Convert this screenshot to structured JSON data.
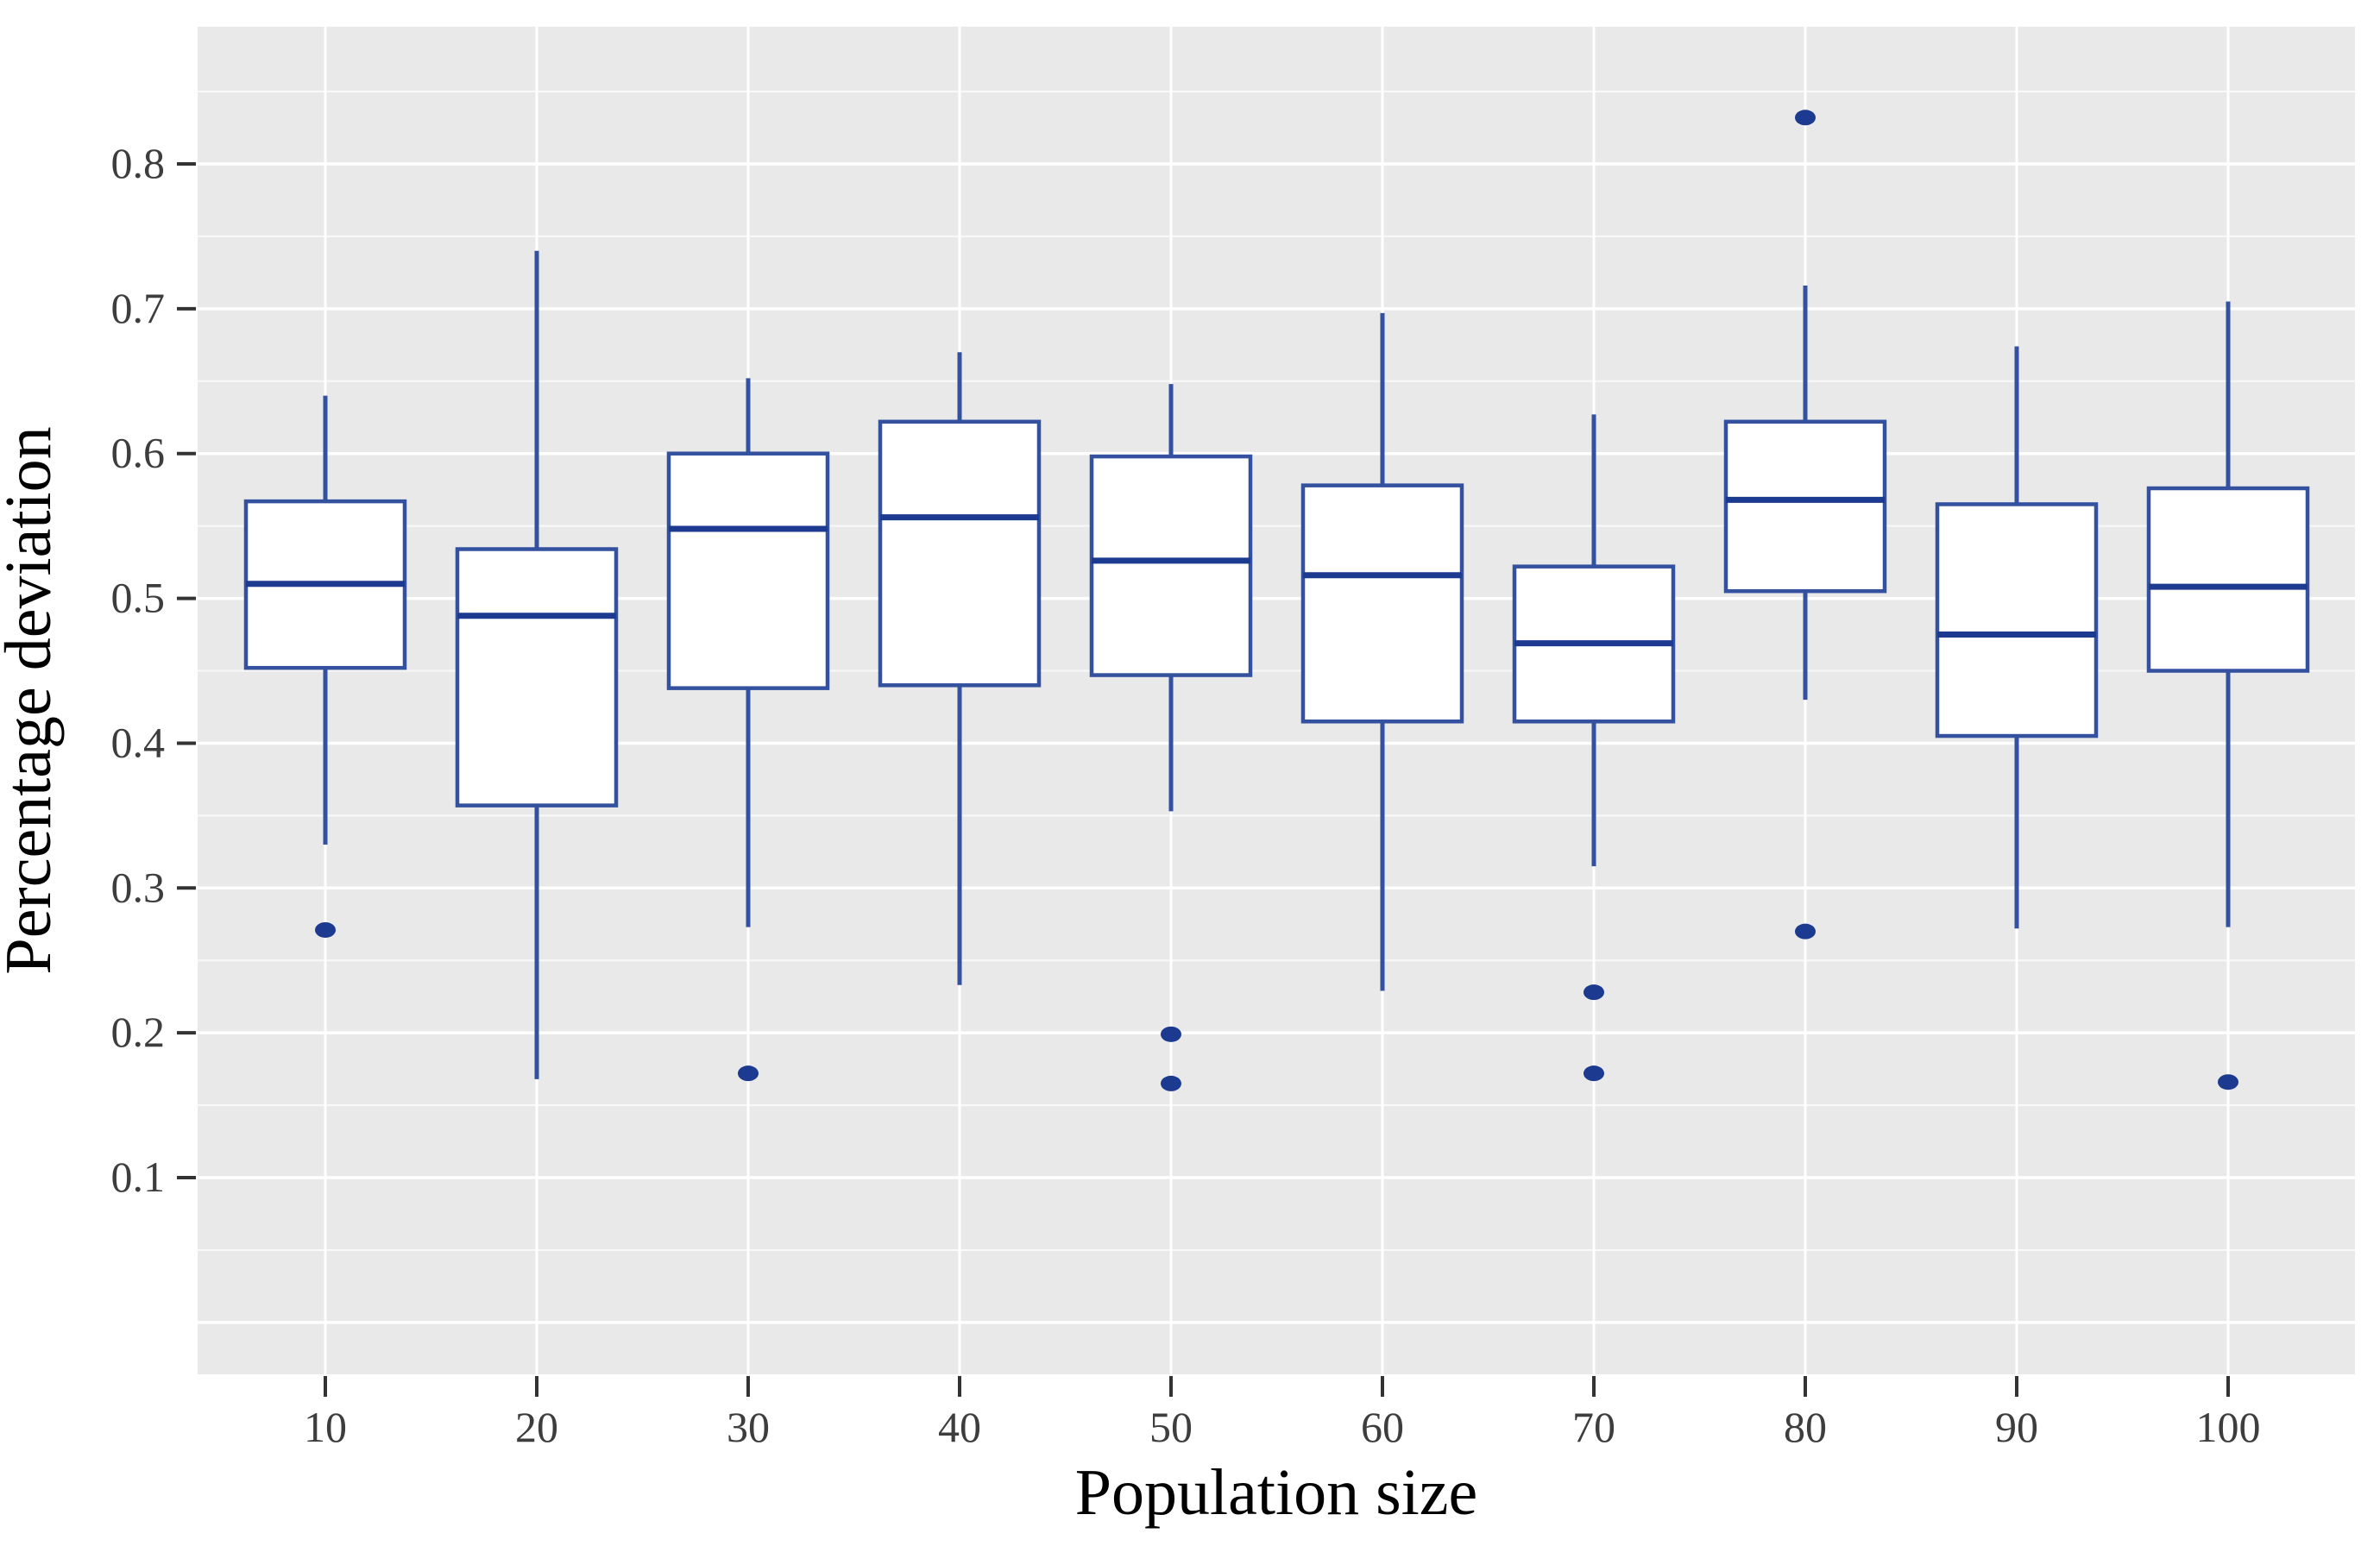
{
  "figure": {
    "kind": "boxplot-figure",
    "background": "#ffffff"
  },
  "chart_data": {
    "type": "boxplot",
    "title": "",
    "xlabel": "Population size",
    "ylabel": "Percentage deviation",
    "categories": [
      "10",
      "20",
      "30",
      "40",
      "50",
      "60",
      "70",
      "80",
      "90",
      "100"
    ],
    "y_ticks": [
      0.1,
      0.2,
      0.3,
      0.4,
      0.5,
      0.6,
      0.7,
      0.8
    ],
    "y_tick_labels": [
      "0.1",
      "0.2",
      "0.3",
      "0.4",
      "0.5",
      "0.6",
      "0.7",
      "0.8"
    ],
    "y_minor_ticks": [
      0.0,
      0.05,
      0.15,
      0.25,
      0.35,
      0.45,
      0.55,
      0.65,
      0.75,
      0.85
    ],
    "ylim_panel": [
      -0.031,
      0.893
    ],
    "grid": "on",
    "legend": "none",
    "series": [
      {
        "category": "10",
        "whisker_low": 0.33,
        "q1": 0.452,
        "median": 0.51,
        "q3": 0.567,
        "whisker_high": 0.64,
        "outliers": [
          0.271
        ]
      },
      {
        "category": "20",
        "whisker_low": 0.168,
        "q1": 0.357,
        "median": 0.488,
        "q3": 0.534,
        "whisker_high": 0.74,
        "outliers": []
      },
      {
        "category": "30",
        "whisker_low": 0.273,
        "q1": 0.438,
        "median": 0.548,
        "q3": 0.6,
        "whisker_high": 0.652,
        "outliers": [
          0.172
        ]
      },
      {
        "category": "40",
        "whisker_low": 0.233,
        "q1": 0.44,
        "median": 0.556,
        "q3": 0.622,
        "whisker_high": 0.67,
        "outliers": []
      },
      {
        "category": "50",
        "whisker_low": 0.353,
        "q1": 0.447,
        "median": 0.526,
        "q3": 0.598,
        "whisker_high": 0.648,
        "outliers": [
          0.199,
          0.165
        ]
      },
      {
        "category": "60",
        "whisker_low": 0.229,
        "q1": 0.415,
        "median": 0.516,
        "q3": 0.578,
        "whisker_high": 0.697,
        "outliers": []
      },
      {
        "category": "70",
        "whisker_low": 0.315,
        "q1": 0.415,
        "median": 0.469,
        "q3": 0.522,
        "whisker_high": 0.627,
        "outliers": [
          0.228,
          0.172
        ]
      },
      {
        "category": "80",
        "whisker_low": 0.43,
        "q1": 0.505,
        "median": 0.568,
        "q3": 0.622,
        "whisker_high": 0.716,
        "outliers": [
          0.832,
          0.27
        ]
      },
      {
        "category": "90",
        "whisker_low": 0.272,
        "q1": 0.405,
        "median": 0.475,
        "q3": 0.565,
        "whisker_high": 0.674,
        "outliers": []
      },
      {
        "category": "100",
        "whisker_low": 0.273,
        "q1": 0.45,
        "median": 0.508,
        "q3": 0.576,
        "whisker_high": 0.705,
        "outliers": [
          0.166
        ]
      }
    ],
    "colors": {
      "panel_bg": "#e9e9e9",
      "grid_major": "#ffffff",
      "grid_minor": "#f5f5f5",
      "box_fill": "#ffffff",
      "box_stroke": "#33519f",
      "median_stroke": "#1c3a90",
      "whisker_stroke": "#33519f",
      "outlier_fill": "#1c3a90",
      "tick_mark": "#333333",
      "tick_text": "#3d3d3d",
      "axis_title_text": "#0a0a0a"
    }
  }
}
